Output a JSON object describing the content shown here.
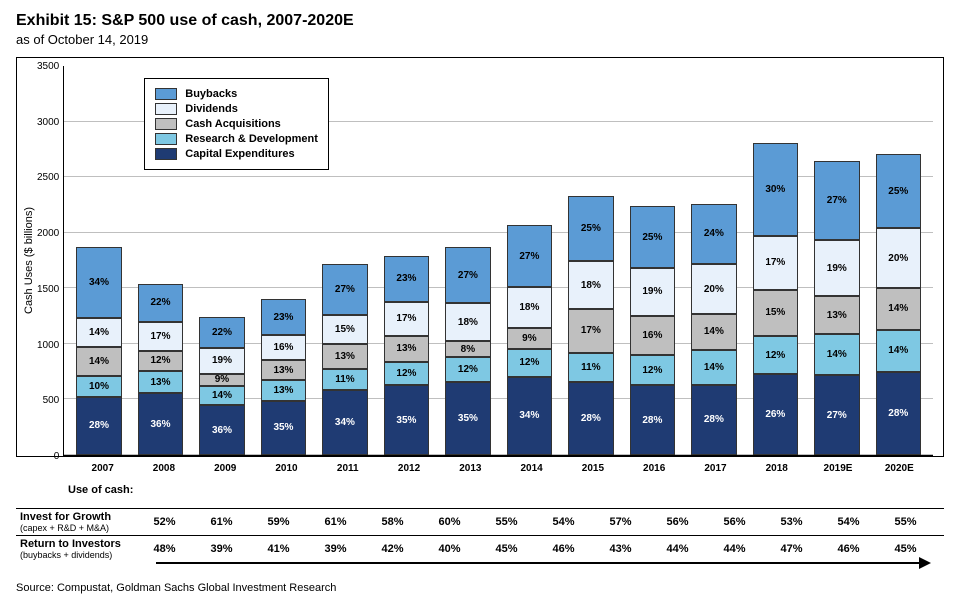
{
  "title": "Exhibit 15: S&P 500 use of cash, 2007-2020E",
  "subtitle": "as of October 14, 2019",
  "source": "Source: Compustat, Goldman Sachs Global Investment Research",
  "chart": {
    "type": "stacked-bar",
    "ylabel": "Cash Uses ($ billions)",
    "ylim": [
      0,
      3500
    ],
    "ytick_step": 500,
    "yticks": [
      "3500",
      "3000",
      "2500",
      "2000",
      "1500",
      "1000",
      "500",
      "0"
    ],
    "grid_color": "#bfbfbf",
    "background_color": "#ffffff",
    "label_fontsize": 10,
    "categories": [
      "2007",
      "2008",
      "2009",
      "2010",
      "2011",
      "2012",
      "2013",
      "2014",
      "2015",
      "2016",
      "2017",
      "2018",
      "2019E",
      "2020E"
    ],
    "series": [
      {
        "name": "Capital Expenditures",
        "color": "#1f3b73",
        "text": "dark"
      },
      {
        "name": "Research & Development",
        "color": "#7ec8e3",
        "text": "light"
      },
      {
        "name": "Cash Acquisitions",
        "color": "#bfbfbf",
        "text": "light"
      },
      {
        "name": "Dividends",
        "color": "#e8f1fb",
        "text": "light"
      },
      {
        "name": "Buybacks",
        "color": "#5b9bd5",
        "text": "light"
      }
    ],
    "totals": [
      1870,
      1540,
      1240,
      1400,
      1720,
      1790,
      1870,
      2070,
      2330,
      2240,
      2260,
      2810,
      2650,
      2710
    ],
    "percents": [
      [
        28,
        10,
        14,
        14,
        34
      ],
      [
        36,
        13,
        12,
        17,
        22
      ],
      [
        36,
        14,
        9,
        19,
        22
      ],
      [
        35,
        13,
        13,
        16,
        23
      ],
      [
        34,
        11,
        13,
        15,
        27
      ],
      [
        35,
        12,
        13,
        17,
        23
      ],
      [
        35,
        12,
        8,
        18,
        27
      ],
      [
        34,
        12,
        9,
        18,
        27
      ],
      [
        28,
        11,
        17,
        18,
        25
      ],
      [
        28,
        12,
        16,
        19,
        25
      ],
      [
        28,
        14,
        14,
        20,
        24
      ],
      [
        26,
        12,
        15,
        17,
        30
      ],
      [
        27,
        14,
        13,
        19,
        27
      ],
      [
        28,
        14,
        14,
        20,
        25
      ]
    ]
  },
  "table": {
    "header": "Use of cash:",
    "rows": [
      {
        "label": "Invest for Growth",
        "sub": "(capex + R&D + M&A)",
        "values": [
          "52%",
          "61%",
          "59%",
          "61%",
          "58%",
          "60%",
          "55%",
          "54%",
          "57%",
          "56%",
          "56%",
          "53%",
          "54%",
          "55%"
        ]
      },
      {
        "label": "Return to Investors",
        "sub": "(buybacks + dividends)",
        "values": [
          "48%",
          "39%",
          "41%",
          "39%",
          "42%",
          "40%",
          "45%",
          "46%",
          "43%",
          "44%",
          "44%",
          "47%",
          "46%",
          "45%"
        ]
      }
    ]
  }
}
